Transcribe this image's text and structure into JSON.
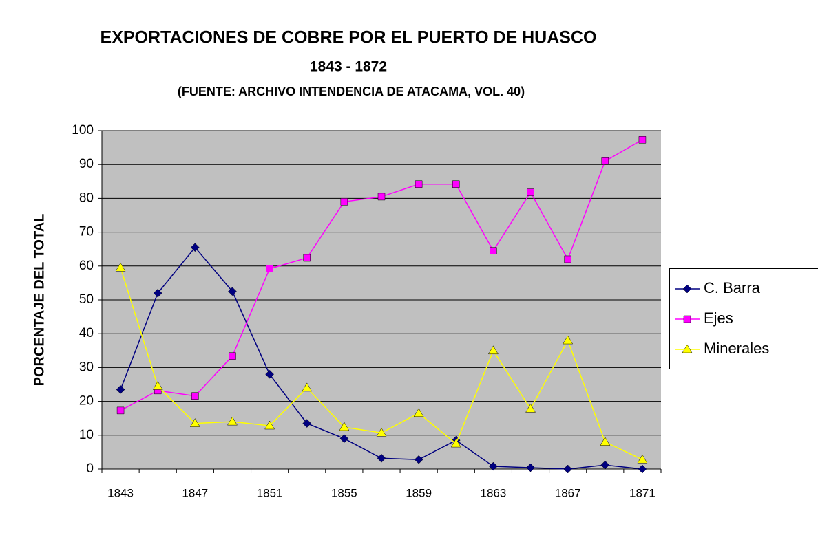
{
  "chart_data": {
    "type": "line",
    "title": "EXPORTACIONES DE COBRE POR EL PUERTO DE HUASCO",
    "subtitle": "1843 - 1872",
    "source": "(FUENTE: ARCHIVO INTENDENCIA DE ATACAMA, VOL. 40)",
    "y_label": "PORCENTAJE DEL TOTAL",
    "categories": [
      "1843",
      null,
      "1847",
      null,
      "1851",
      null,
      "1855",
      null,
      "1859",
      null,
      "1863",
      null,
      "1867",
      null,
      "1871"
    ],
    "series": [
      {
        "name": "C. Barra",
        "color": "#000080",
        "marker": "diamond",
        "values": [
          23.5,
          52,
          65.5,
          52.5,
          28,
          13.5,
          9,
          3.2,
          2.8,
          8.5,
          0.8,
          0.4,
          0,
          1.2,
          0
        ]
      },
      {
        "name": "Ejes",
        "color": "#ff00ff",
        "marker": "square",
        "values": [
          17.3,
          23.2,
          21.6,
          33.4,
          59.2,
          62.4,
          79,
          80.5,
          84.2,
          84.2,
          64.5,
          81.8,
          62,
          91,
          97.3
        ]
      },
      {
        "name": "Minerales",
        "color": "#ffff00",
        "marker": "triangle",
        "values": [
          59.5,
          24.5,
          13.5,
          14,
          12.8,
          24,
          12.4,
          10.7,
          16.5,
          7.5,
          35,
          17.8,
          38,
          8,
          2.8
        ]
      }
    ],
    "ylim": [
      0,
      100
    ],
    "yticks": [
      0,
      10,
      20,
      30,
      40,
      50,
      60,
      70,
      80,
      90,
      100
    ],
    "grid": true,
    "legend": "right"
  }
}
